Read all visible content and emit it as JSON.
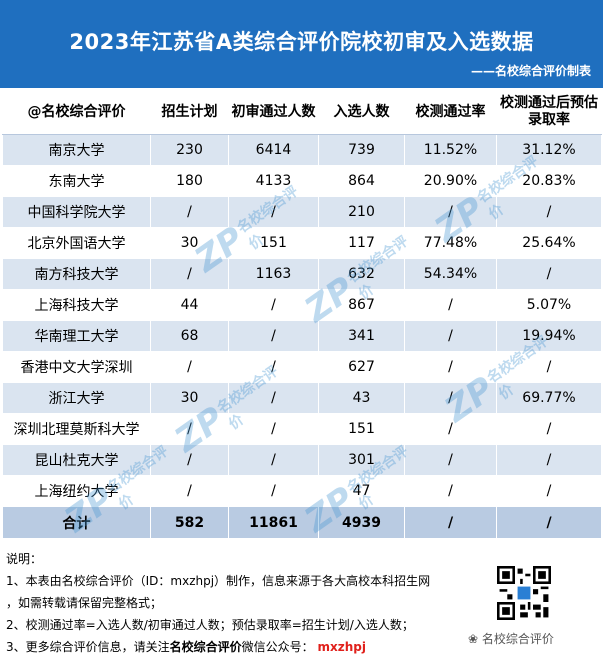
{
  "header": {
    "title": "2023年江苏省A类综合评价院校初审及入选数据",
    "subtitle": "——名校综合评价制表"
  },
  "table": {
    "columns": [
      "@名校综合评价",
      "招生计划",
      "初审通过人数",
      "入选人数",
      "校测通过率",
      "校测通过后预估录取率"
    ],
    "rows": [
      [
        "南京大学",
        "230",
        "6414",
        "739",
        "11.52%",
        "31.12%"
      ],
      [
        "东南大学",
        "180",
        "4133",
        "864",
        "20.90%",
        "20.83%"
      ],
      [
        "中国科学院大学",
        "/",
        "/",
        "210",
        "/",
        "/"
      ],
      [
        "北京外国语大学",
        "30",
        "151",
        "117",
        "77.48%",
        "25.64%"
      ],
      [
        "南方科技大学",
        "/",
        "1163",
        "632",
        "54.34%",
        "/"
      ],
      [
        "上海科技大学",
        "44",
        "/",
        "867",
        "/",
        "5.07%"
      ],
      [
        "华南理工大学",
        "68",
        "/",
        "341",
        "/",
        "19.94%"
      ],
      [
        "香港中文大学深圳",
        "/",
        "/",
        "627",
        "/",
        "/"
      ],
      [
        "浙江大学",
        "30",
        "/",
        "43",
        "/",
        "69.77%"
      ],
      [
        "深圳北理莫斯科大学",
        "/",
        "/",
        "151",
        "/",
        "/"
      ],
      [
        "昆山杜克大学",
        "/",
        "/",
        "301",
        "/",
        "/"
      ],
      [
        "上海纽约大学",
        "/",
        "/",
        "47",
        "/",
        "/"
      ]
    ],
    "total": [
      "合计",
      "582",
      "11861",
      "4939",
      "/",
      "/"
    ]
  },
  "watermark": {
    "mark": "ZP",
    "text": "名校综合评价"
  },
  "notes": {
    "heading": "说明：",
    "line1": "1、本表由名校综合评价（ID：mxzhpj）制作，信息来源于各大高校本科招生网",
    "line2": "，如需转载请保留完整格式；",
    "line3": "2、校测通过率=入选人数/初审通过人数；预估录取率=招生计划/入选人数；",
    "line4_prefix": "3、更多综合评价信息，请关注",
    "line4_brand": "名校综合评价",
    "line4_mid": "微信公众号：",
    "line4_id": "mxzhpj"
  },
  "brand_mark": "名校综合评价",
  "colors": {
    "header": "#1f6fbf",
    "row_alt": "#dae4f0",
    "total_row": "#b9cbe2",
    "accent": "#e0201b"
  }
}
